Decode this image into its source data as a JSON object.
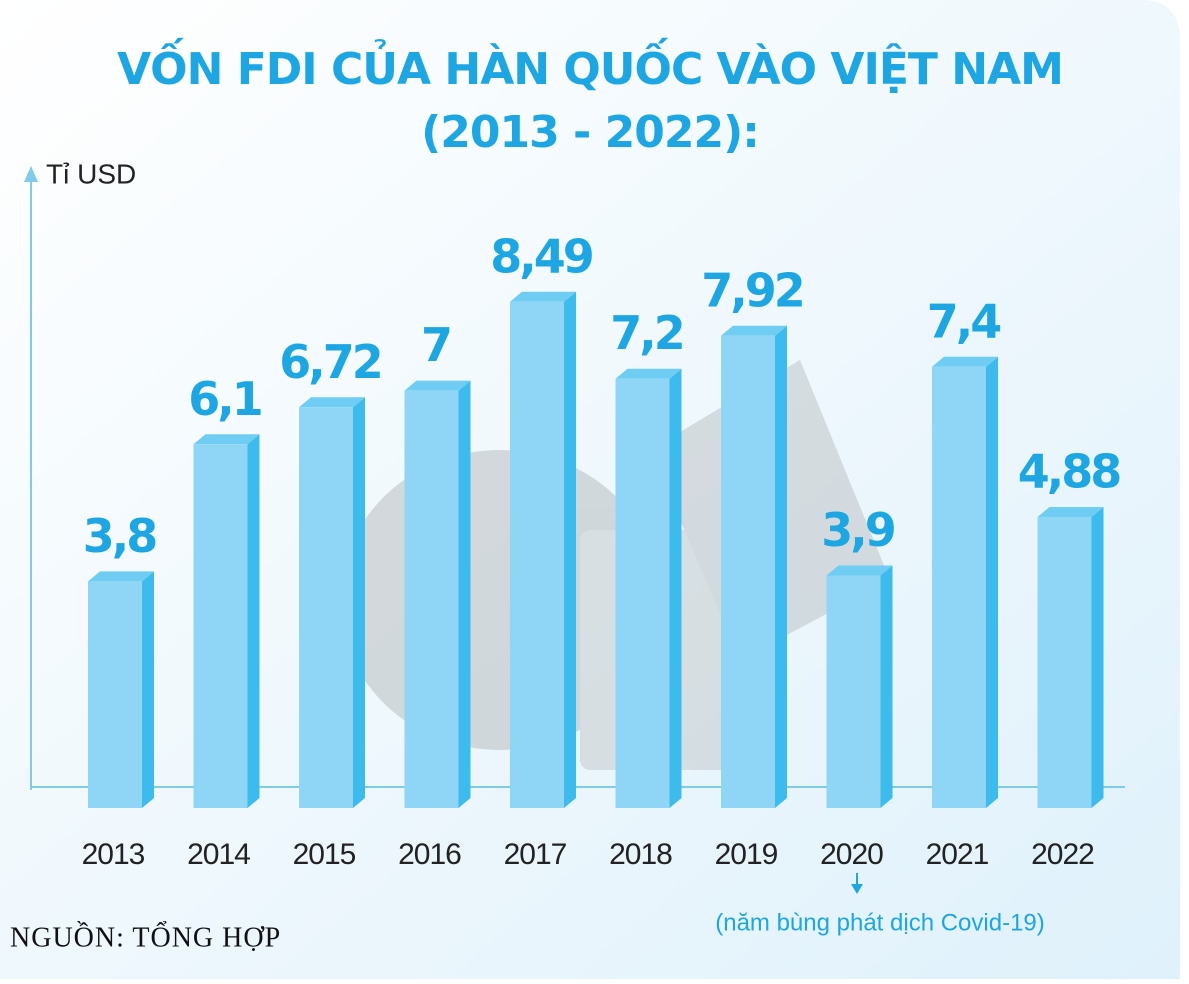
{
  "chart_data": {
    "type": "bar",
    "title": "VỐN FDI CỦA HÀN QUỐC VÀO VIỆT NAM",
    "subtitle": "(2013 - 2022):",
    "y_label": "Tỉ USD",
    "categories": [
      "2013",
      "2014",
      "2015",
      "2016",
      "2017",
      "2018",
      "2019",
      "2020",
      "2021",
      "2022"
    ],
    "values": [
      3.8,
      6.1,
      6.72,
      7,
      8.49,
      7.2,
      7.92,
      3.9,
      7.4,
      4.88
    ],
    "value_labels": [
      "3,8",
      "6,1",
      "6,72",
      "7",
      "8,49",
      "7,2",
      "7,92",
      "3,9",
      "7,4",
      "4,88"
    ],
    "color": "#8fd6f6",
    "ylim": [
      0,
      10.7
    ],
    "annotation": "(năm bùng phát dịch Covid-19)",
    "source": "NGUỒN: TỔNG HỢP"
  }
}
